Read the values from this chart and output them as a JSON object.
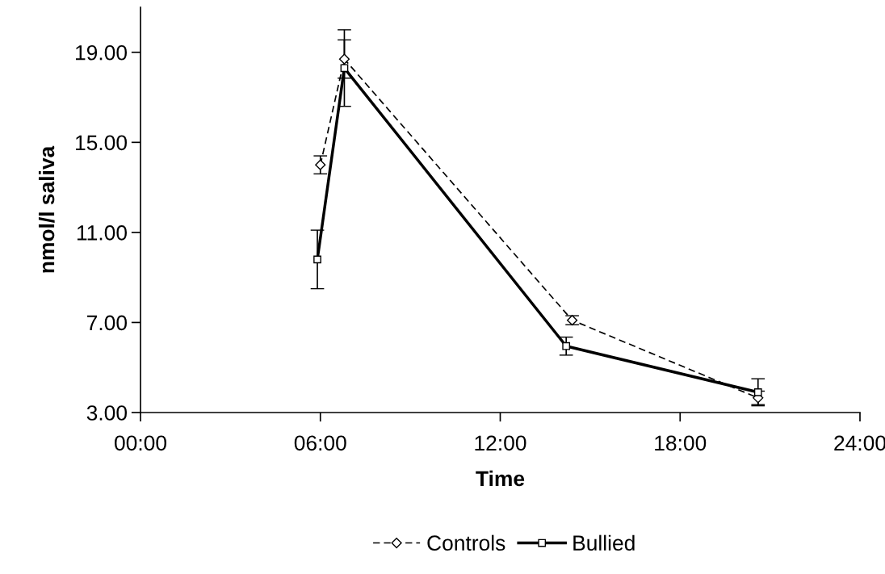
{
  "chart_data": {
    "type": "line",
    "xlabel": "Time",
    "ylabel": "nmol/l saliva",
    "xlim": [
      0,
      24
    ],
    "xticks": [
      {
        "value": 0,
        "label": "00:00"
      },
      {
        "value": 6,
        "label": "06:00"
      },
      {
        "value": 12,
        "label": "12:00"
      },
      {
        "value": 18,
        "label": "18:00"
      },
      {
        "value": 24,
        "label": "24:00"
      }
    ],
    "ylim": [
      3,
      21
    ],
    "yticks": [
      {
        "value": 3,
        "label": "3.00"
      },
      {
        "value": 7,
        "label": "7.00"
      },
      {
        "value": 11,
        "label": "11.00"
      },
      {
        "value": 15,
        "label": "15.00"
      },
      {
        "value": 19,
        "label": "19.00"
      }
    ],
    "grid": false,
    "legend": "bottom",
    "series": [
      {
        "name": "Controls",
        "color": "#000000",
        "x": [
          6.0,
          6.8,
          14.4,
          20.6
        ],
        "values": [
          14.0,
          18.7,
          7.1,
          3.65
        ],
        "errors": [
          0.4,
          0.85,
          0.2,
          0.3
        ],
        "marker": "diamond",
        "line_style": "dashed"
      },
      {
        "name": "Bullied",
        "color": "#000000",
        "x": [
          5.9,
          6.8,
          14.2,
          20.6
        ],
        "values": [
          9.8,
          18.3,
          5.95,
          3.9
        ],
        "errors": [
          1.3,
          1.7,
          0.4,
          0.6
        ],
        "marker": "square",
        "line_style": "solid"
      }
    ]
  }
}
